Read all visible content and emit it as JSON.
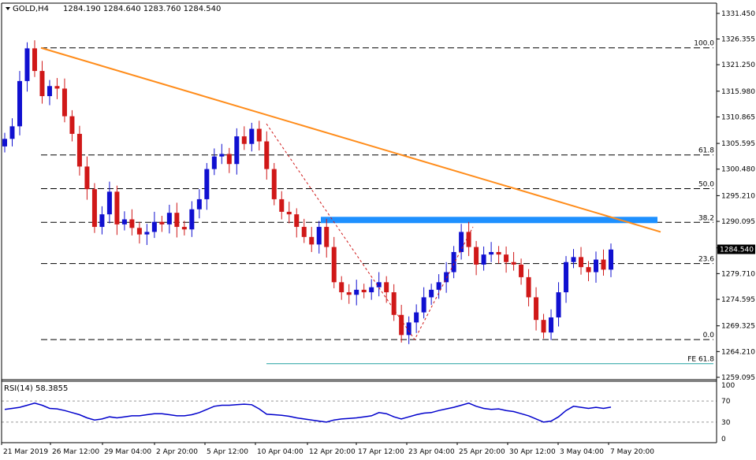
{
  "header": {
    "symbol_label": "GOLD,H4",
    "ohlc": "1284.190 1284.640 1283.760 1284.540"
  },
  "colors": {
    "bull": "#1010d0",
    "bear": "#d01818",
    "trendline": "#ff8c1a",
    "zone": "#1e90ff",
    "rsi_line": "#0000cc",
    "fe_line": "#20a0a0",
    "axis": "#000000",
    "price_tag_bg": "#000000",
    "price_tag_text": "#ffffff"
  },
  "chart_data": [
    {
      "type": "line",
      "name_panel": "price",
      "x_tick_labels": [
        "21 Mar 2019",
        "26 Mar 12:00",
        "29 Mar 04:00",
        "2 Apr 20:00",
        "5 Apr 12:00",
        "10 Apr 04:00",
        "12 Apr 20:00",
        "17 Apr 12:00",
        "23 Apr 04:00",
        "25 Apr 20:00",
        "30 Apr 12:00",
        "3 May 04:00",
        "7 May 20:00"
      ],
      "y_tick_labels": [
        "1331.450",
        "1326.355",
        "1321.250",
        "1315.980",
        "1310.865",
        "1305.595",
        "1300.480",
        "1295.210",
        "1290.095",
        "1284.825",
        "1279.710",
        "1274.595",
        "1269.325",
        "1264.210",
        "1259.095"
      ],
      "ylim": [
        1259.095,
        1331.45
      ],
      "current_price": "1284.540",
      "fib_levels": [
        {
          "label": "100.0",
          "value": 1324.6
        },
        {
          "label": "61.8",
          "value": 1303.3
        },
        {
          "label": "50.0",
          "value": 1296.6
        },
        {
          "label": "38.2",
          "value": 1289.9
        },
        {
          "label": "23.6",
          "value": 1281.7
        },
        {
          "label": "0.0",
          "value": 1266.6
        }
      ],
      "fe_level": {
        "label": "FE 61.8",
        "value": 1261.8
      },
      "resistance_zone": [
        1289.8,
        1291.0
      ],
      "trendline": {
        "from": [
          0,
          1324.6
        ],
        "to": [
          238,
          1288.0
        ]
      },
      "close_series": [
        1306.5,
        1309.0,
        1318.0,
        1324.5,
        1320.0,
        1315.0,
        1317.0,
        1316.5,
        1311.0,
        1307.5,
        1301.0,
        1296.5,
        1289.0,
        1291.5,
        1296.0,
        1289.5,
        1290.5,
        1288.8,
        1287.5,
        1288.0,
        1290.0,
        1289.5,
        1291.8,
        1289.0,
        1288.5,
        1292.5,
        1294.5,
        1300.5,
        1303.0,
        1303.5,
        1301.5,
        1307.0,
        1305.5,
        1308.5,
        1306.0,
        1300.5,
        1294.5,
        1292.0,
        1291.5,
        1289.0,
        1287.0,
        1285.5,
        1289.0,
        1285.0,
        1278.0,
        1276.0,
        1275.5,
        1276.5,
        1276.0,
        1277.0,
        1278.0,
        1276.0,
        1271.5,
        1267.5,
        1270.0,
        1272.0,
        1275.0,
        1276.5,
        1278.0,
        1280.0,
        1284.0,
        1288.0,
        1285.0,
        1281.5,
        1283.5,
        1284.0,
        1283.5,
        1282.0,
        1281.5,
        1279.0,
        1275.0,
        1270.5,
        1268.0,
        1271.0,
        1276.0,
        1282.0,
        1283.0,
        1281.0,
        1280.0,
        1282.5,
        1280.5,
        1284.5
      ],
      "annotations": [
        "100.0",
        "61.8",
        "50.0",
        "38.2",
        "23.6",
        "0.0",
        "FE 61.8"
      ]
    },
    {
      "type": "line",
      "name_panel": "rsi",
      "label": "RSI(14) 58.3855",
      "y_tick_labels": [
        "100",
        "70",
        "30",
        "0"
      ],
      "ylim": [
        0,
        100
      ],
      "reference_lines": [
        70,
        30
      ],
      "values": [
        54,
        56,
        58,
        62,
        66,
        62,
        56,
        55,
        52,
        48,
        44,
        38,
        34,
        36,
        40,
        38,
        40,
        42,
        42,
        44,
        46,
        46,
        44,
        42,
        42,
        44,
        48,
        54,
        60,
        62,
        62,
        63,
        64,
        63,
        55,
        45,
        44,
        43,
        41,
        38,
        36,
        34,
        32,
        30,
        34,
        36,
        37,
        38,
        40,
        42,
        48,
        46,
        40,
        36,
        40,
        44,
        47,
        48,
        52,
        55,
        58,
        62,
        66,
        60,
        56,
        54,
        55,
        52,
        50,
        46,
        42,
        36,
        30,
        32,
        40,
        52,
        60,
        58,
        56,
        58,
        56,
        58.4
      ]
    }
  ]
}
